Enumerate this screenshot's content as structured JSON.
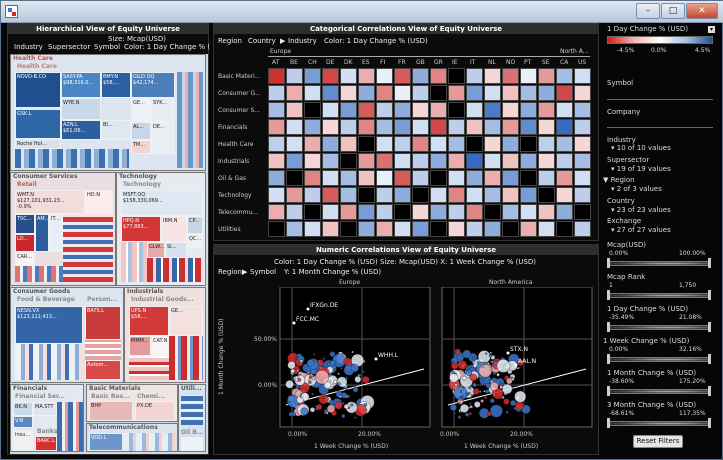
{
  "window": {
    "icon": "app-icon",
    "controls": [
      "–",
      "□",
      "✕"
    ]
  },
  "treemap": {
    "title": "Hierarchical View of Equity Universe",
    "hierarchy": [
      "Industry",
      "Supersector",
      "Symbol"
    ],
    "size": "Size: Mcap(USD)",
    "color": "Color: 1 Day Change % (",
    "groups": [
      {
        "name": "Health Care",
        "sub": "Health Care",
        "cells": [
          "NOVO-B.CO",
          "GSK.L",
          "SASY.PA\n$98,316.0...",
          "WYE.N",
          "BMY.N\n$58,...",
          "GILD.OQ\n$42,174...",
          "AZN.L\n$61,06...",
          "Roche Hol...",
          "GE...",
          "SYK...",
          "BI...",
          "AL...",
          "TM...",
          "DE..."
        ]
      },
      {
        "name": "Consumer Services",
        "sub": "Retail",
        "cells": [
          "WMT.N\n$127,101,931.23...\n-0.9%",
          "HD.N",
          "TSC...",
          "LO...",
          "AM...",
          "IT...",
          "CAR...",
          "...",
          "AI..."
        ]
      },
      {
        "name": "Technology",
        "sub": "Technology",
        "cells": [
          "MSFT.OQ\n$158,330,069...",
          "HPQ.N\n$77,883...",
          "IBM.N",
          "GLW...",
          "CP...",
          "QC...",
          "SI..."
        ]
      },
      {
        "name": "Consumer Goods",
        "sub": "Food & Beverage",
        "sub2": "Person...",
        "cells": [
          "NESN.VX\n$123,112,413...",
          "BATS.L",
          "Autom..."
        ]
      },
      {
        "name": "Industrials",
        "sub": "Industrial Goods...",
        "cells": [
          "UPS.N\n$58,...",
          "MMM...",
          "GE...",
          "CAT.N"
        ]
      },
      {
        "name": "Financials",
        "sub": "Financial Ser...",
        "sub2": "Banks",
        "cells": [
          "BK.N",
          "MA.STT",
          "V.N",
          "Insu...",
          "BARC.L"
        ]
      },
      {
        "name": "Basic Materials",
        "sub": "Basic Res...",
        "sub2": "Chemi...",
        "cells": [
          "BHP",
          "PX.DE"
        ]
      },
      {
        "name": "Utili...",
        "sub": "Telecommunications",
        "sub2": "Oil B...",
        "cells": [
          "VOD.L"
        ]
      }
    ]
  },
  "heatmap": {
    "title": "Categorical Correlations View of Equity Universe",
    "hierarchy": [
      "Region",
      "Country",
      "Industry"
    ],
    "color": "Color: 1 Day Change % (USD)",
    "region_labels": [
      "Europe",
      "North A..."
    ],
    "countries": [
      "AT",
      "BE",
      "CH",
      "DE",
      "DK",
      "ES",
      "FI",
      "FR",
      "GB",
      "GR",
      "IE",
      "IT",
      "NL",
      "NO",
      "PT",
      "SE",
      "CA",
      "US"
    ],
    "rows": [
      "Basic Materi...",
      "Consumer G...",
      "Consumer S...",
      "Financials",
      "Health Care",
      "Industrials",
      "Oil & Gas",
      "Technology",
      "Telecommu...",
      "Utilities"
    ],
    "values": [
      [
        -1,
        0.3,
        0.6,
        -0.9,
        0.2,
        -0.4,
        0.1,
        -0.8,
        0.5,
        -0.6,
        null,
        0.3,
        -0.2,
        -0.7,
        0.1,
        -0.5,
        0.4,
        0.2
      ],
      [
        0.3,
        -0.4,
        0.2,
        0.7,
        -0.2,
        0.5,
        -0.6,
        0.1,
        0.3,
        null,
        -0.5,
        0.6,
        0.2,
        -0.3,
        0.4,
        0.5,
        -0.9,
        -0.2
      ],
      [
        0.4,
        -0.3,
        null,
        0.2,
        0.6,
        -0.8,
        0.3,
        0.5,
        -0.2,
        -0.4,
        null,
        0.2,
        0.8,
        -0.2,
        0.5,
        -0.5,
        0.2,
        0.4
      ],
      [
        -0.5,
        0.2,
        0.5,
        -0.2,
        0.3,
        -0.6,
        0.4,
        0.6,
        0.2,
        -0.9,
        0.3,
        -0.3,
        0.4,
        -0.5,
        0.7,
        -0.2,
        0.9,
        0.3
      ],
      [
        0.3,
        0.2,
        -0.4,
        0.5,
        -0.3,
        null,
        0.2,
        0.3,
        -0.6,
        0.2,
        0.4,
        null,
        -0.2,
        0.5,
        null,
        0.3,
        0.4,
        -0.2
      ],
      [
        -0.3,
        0.6,
        -0.2,
        0.4,
        null,
        -0.5,
        -0.7,
        0.2,
        0.3,
        0.5,
        -0.4,
        0.9,
        0.2,
        -0.3,
        0.5,
        -0.2,
        0.3,
        0.4
      ],
      [
        0.5,
        null,
        -0.6,
        0.2,
        0.4,
        -0.3,
        0.1,
        -0.8,
        0.3,
        null,
        0.2,
        0.5,
        -0.4,
        0.6,
        null,
        0.3,
        -0.5,
        0.2
      ],
      [
        0.2,
        -0.5,
        0.3,
        -0.8,
        0.4,
        null,
        0.3,
        0.5,
        null,
        0.2,
        -0.6,
        0.2,
        0.4,
        -0.3,
        0.6,
        null,
        -0.2,
        0.3
      ],
      [
        -0.4,
        0.3,
        null,
        0.2,
        -0.5,
        0.6,
        0.3,
        null,
        -0.2,
        0.5,
        0.3,
        -0.6,
        null,
        0.4,
        0.2,
        -0.3,
        0.5,
        null
      ],
      [
        null,
        0.4,
        0.2,
        -0.3,
        null,
        0.5,
        -0.4,
        0.2,
        0.6,
        null,
        -0.2,
        0.3,
        0.5,
        null,
        -0.4,
        0.2,
        null,
        0.3
      ]
    ]
  },
  "scatter": {
    "title": "Numeric Correlations View of Equity Universe",
    "config_line1": "Color: 1 Day Change % (USD)  Size: Mcap(USD)  X: 1 Week Change % (USD)",
    "config_line2": "Y: 1 Month Change % (USD)",
    "hierarchy": [
      "Region",
      "Symbol"
    ],
    "panels": [
      "Europe",
      "North America"
    ],
    "ylabel": "1 Month Change % (USD)",
    "xlabel": "1 Week Change % (USD)",
    "yticks": [
      "50.00%",
      "0.00%"
    ],
    "xticks": [
      "0.00%",
      "20.00%",
      "0.00%",
      "20.00%"
    ],
    "labels": [
      "IFXGn.DE",
      "FCC.MC",
      "WHH.L",
      "STX.N",
      "AAL.N"
    ]
  },
  "right": {
    "colorby": "1 Day Change % (USD)",
    "legend": [
      "-4.5%",
      "0.0%",
      "4.5%"
    ],
    "filters": [
      {
        "label": "Symbol"
      },
      {
        "label": "Company"
      },
      {
        "label": "Industry",
        "value": "10 of 10 values"
      },
      {
        "label": "Supersector",
        "value": "19 of 19 values"
      },
      {
        "label": "Region",
        "value": "2 of 3 values"
      },
      {
        "label": "Country",
        "value": "23 of 23 values"
      },
      {
        "label": "Exchange",
        "value": "27 of 27 values"
      }
    ],
    "ranges": [
      {
        "label": "Mcap(USD)",
        "min": "0.00%",
        "max": "100.00%"
      },
      {
        "label": "Mcap Rank",
        "min": "1",
        "max": "1,750"
      },
      {
        "label": "1 Day Change % (USD)",
        "min": "-35.49%",
        "max": "21.08%"
      },
      {
        "label": "1 Week Change % (USD)",
        "min": "0.00%",
        "max": "32.16%"
      },
      {
        "label": "1 Month Change % (USD)",
        "min": "-38.60%",
        "max": "175.20%"
      },
      {
        "label": "3 Month Change % (USD)",
        "min": "-68.61%",
        "max": "117.35%"
      }
    ],
    "reset": "Reset Filters"
  }
}
